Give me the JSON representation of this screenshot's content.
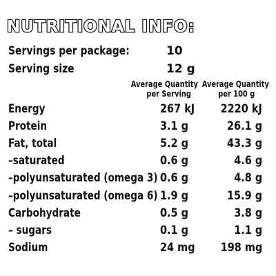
{
  "title": "NUTRITIONAL INFO:",
  "meta": {
    "servings_label": "Servings per package:",
    "servings_value": "10",
    "size_label": "Serving size",
    "size_value": "12 g"
  },
  "columns": {
    "per_serving_line1": "Average Quantity",
    "per_serving_line2": "per Serving",
    "per_100_line1": "Average Quantity",
    "per_100_line2": "per 100 g"
  },
  "rows": [
    {
      "label": "Energy",
      "per_serving": "267 kJ",
      "per_100g": "2220 kJ"
    },
    {
      "label": "Protein",
      "per_serving": "3.1 g",
      "per_100g": "26.1 g"
    },
    {
      "label": "Fat, total",
      "per_serving": "5.2 g",
      "per_100g": "43.3 g"
    },
    {
      "label": "–saturated",
      "per_serving": "0.6 g",
      "per_100g": "4.6 g"
    },
    {
      "label": "–polyunsaturated (omega 3)",
      "per_serving": "0.6 g",
      "per_100g": "4.8 g"
    },
    {
      "label": "–polyunsaturated (omega 6)",
      "per_serving": "1.9 g",
      "per_100g": "15.9 g"
    },
    {
      "label": "Carbohydrate",
      "per_serving": "0.5 g",
      "per_100g": "3.8 g"
    },
    {
      "label": "– sugars",
      "per_serving": "0.1 g",
      "per_100g": "1.1 g"
    },
    {
      "label": "Sodium",
      "per_serving": "24  mg",
      "per_100g": "198 mg"
    }
  ]
}
